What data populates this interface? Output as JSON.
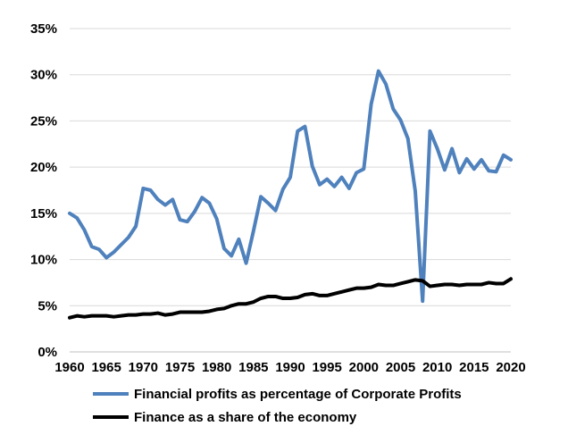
{
  "chart_data": {
    "type": "line",
    "x": [
      1960,
      1961,
      1962,
      1963,
      1964,
      1965,
      1966,
      1967,
      1968,
      1969,
      1970,
      1971,
      1972,
      1973,
      1974,
      1975,
      1976,
      1977,
      1978,
      1979,
      1980,
      1981,
      1982,
      1983,
      1984,
      1985,
      1986,
      1987,
      1988,
      1989,
      1990,
      1991,
      1992,
      1993,
      1994,
      1995,
      1996,
      1997,
      1998,
      1999,
      2000,
      2001,
      2002,
      2003,
      2004,
      2005,
      2006,
      2007,
      2008,
      2009,
      2010,
      2011,
      2012,
      2013,
      2014,
      2015,
      2016,
      2017,
      2018,
      2019,
      2020
    ],
    "series": [
      {
        "name": "Financial profits as percentage of Corporate Profits",
        "color": "#4f81bd",
        "values": [
          15.0,
          14.5,
          13.2,
          11.4,
          11.1,
          10.2,
          10.8,
          11.6,
          12.4,
          13.6,
          17.7,
          17.5,
          16.5,
          15.9,
          16.5,
          14.3,
          14.1,
          15.2,
          16.7,
          16.1,
          14.4,
          11.2,
          10.4,
          12.2,
          9.6,
          13.1,
          16.8,
          16.1,
          15.3,
          17.6,
          18.9,
          23.9,
          24.4,
          20.1,
          18.1,
          18.7,
          17.9,
          18.9,
          17.7,
          19.4,
          19.8,
          26.8,
          30.4,
          29.0,
          26.3,
          25.1,
          23.1,
          17.4,
          5.5,
          23.9,
          22.0,
          19.7,
          22.0,
          19.4,
          20.9,
          19.8,
          20.8,
          19.6,
          19.5,
          21.3,
          20.8
        ]
      },
      {
        "name": "Finance as a share of the economy",
        "color": "#000000",
        "values": [
          3.7,
          3.9,
          3.8,
          3.9,
          3.9,
          3.9,
          3.8,
          3.9,
          4.0,
          4.0,
          4.1,
          4.1,
          4.2,
          4.0,
          4.1,
          4.3,
          4.3,
          4.3,
          4.3,
          4.4,
          4.6,
          4.7,
          5.0,
          5.2,
          5.2,
          5.4,
          5.8,
          6.0,
          6.0,
          5.8,
          5.8,
          5.9,
          6.2,
          6.3,
          6.1,
          6.1,
          6.3,
          6.5,
          6.7,
          6.9,
          6.9,
          7.0,
          7.3,
          7.2,
          7.2,
          7.4,
          7.6,
          7.8,
          7.7,
          7.1,
          7.2,
          7.3,
          7.3,
          7.2,
          7.3,
          7.3,
          7.3,
          7.5,
          7.4,
          7.4,
          7.9
        ]
      }
    ],
    "ylim": [
      0,
      35
    ],
    "yticks": [
      0,
      5,
      10,
      15,
      20,
      25,
      30,
      35
    ],
    "ytick_labels": [
      "0%",
      "5%",
      "10%",
      "15%",
      "20%",
      "25%",
      "30%",
      "35%"
    ],
    "xticks": [
      1960,
      1965,
      1970,
      1975,
      1980,
      1985,
      1990,
      1995,
      2000,
      2005,
      2010,
      2015,
      2020
    ],
    "xtick_labels": [
      "1960",
      "1965",
      "1970",
      "1975",
      "1980",
      "1985",
      "1990",
      "1995",
      "2000",
      "2005",
      "2010",
      "2015",
      "2020"
    ],
    "grid": "horizontal",
    "legend_position": "bottom"
  }
}
